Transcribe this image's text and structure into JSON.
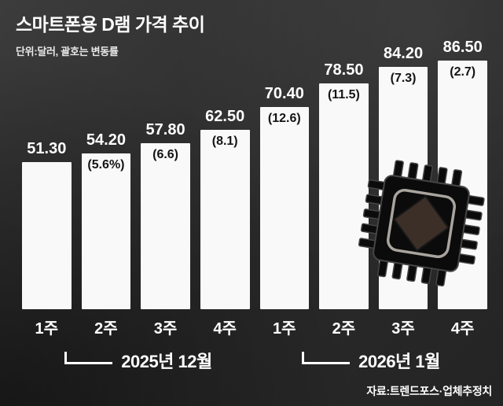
{
  "title": "스마트폰용 D램 가격 추이",
  "subtitle": "단위:달러, 괄호는 변동률",
  "source": "자료:트렌드포스·업체추정치",
  "icons": {
    "chip": "chip-icon"
  },
  "chart_data": {
    "type": "bar",
    "title": "스마트폰용 D램 가격 추이",
    "unit_note": "단위:달러, 괄호는 변동률",
    "categories": [
      "1주",
      "2주",
      "3주",
      "4주",
      "1주",
      "2주",
      "3주",
      "4주"
    ],
    "values": [
      51.3,
      54.2,
      57.8,
      62.5,
      70.4,
      78.5,
      84.2,
      86.5
    ],
    "value_labels": [
      "51.30",
      "54.20",
      "57.80",
      "62.50",
      "70.40",
      "78.50",
      "84.20",
      "86.50"
    ],
    "change_labels": [
      "",
      "(5.6%)",
      "(6.6)",
      "(8.1)",
      "(12.6)",
      "(11.5)",
      "(7.3)",
      "(2.7)"
    ],
    "groups": [
      {
        "label": "2025년 12월",
        "span": [
          0,
          3
        ]
      },
      {
        "label": "2026년 1월",
        "span": [
          4,
          7
        ]
      }
    ],
    "bar_color": "#f9f9f9",
    "background": "#2b2b2b",
    "text_color": "#ffffff",
    "change_text_color": "#141414",
    "ylim": [
      0,
      90
    ],
    "grid": false,
    "legend": false
  }
}
